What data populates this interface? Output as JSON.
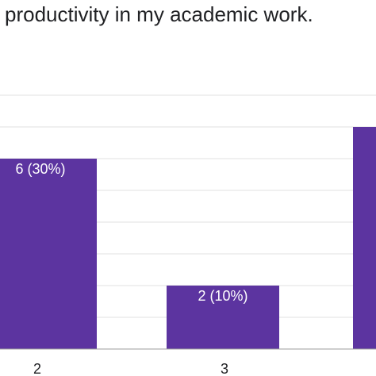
{
  "chart_data": {
    "type": "bar",
    "title": "productivity in my academic work.",
    "categories": [
      "2",
      "3",
      ""
    ],
    "values": [
      6,
      2,
      7
    ],
    "data_labels": [
      "6 (30%)",
      "2 (10%)",
      ""
    ],
    "ylim": [
      0,
      8
    ],
    "grid": true,
    "colors": {
      "bar": "#5c34a0",
      "grid": "#e0e0e0",
      "axis": "#9e9e9e"
    }
  }
}
